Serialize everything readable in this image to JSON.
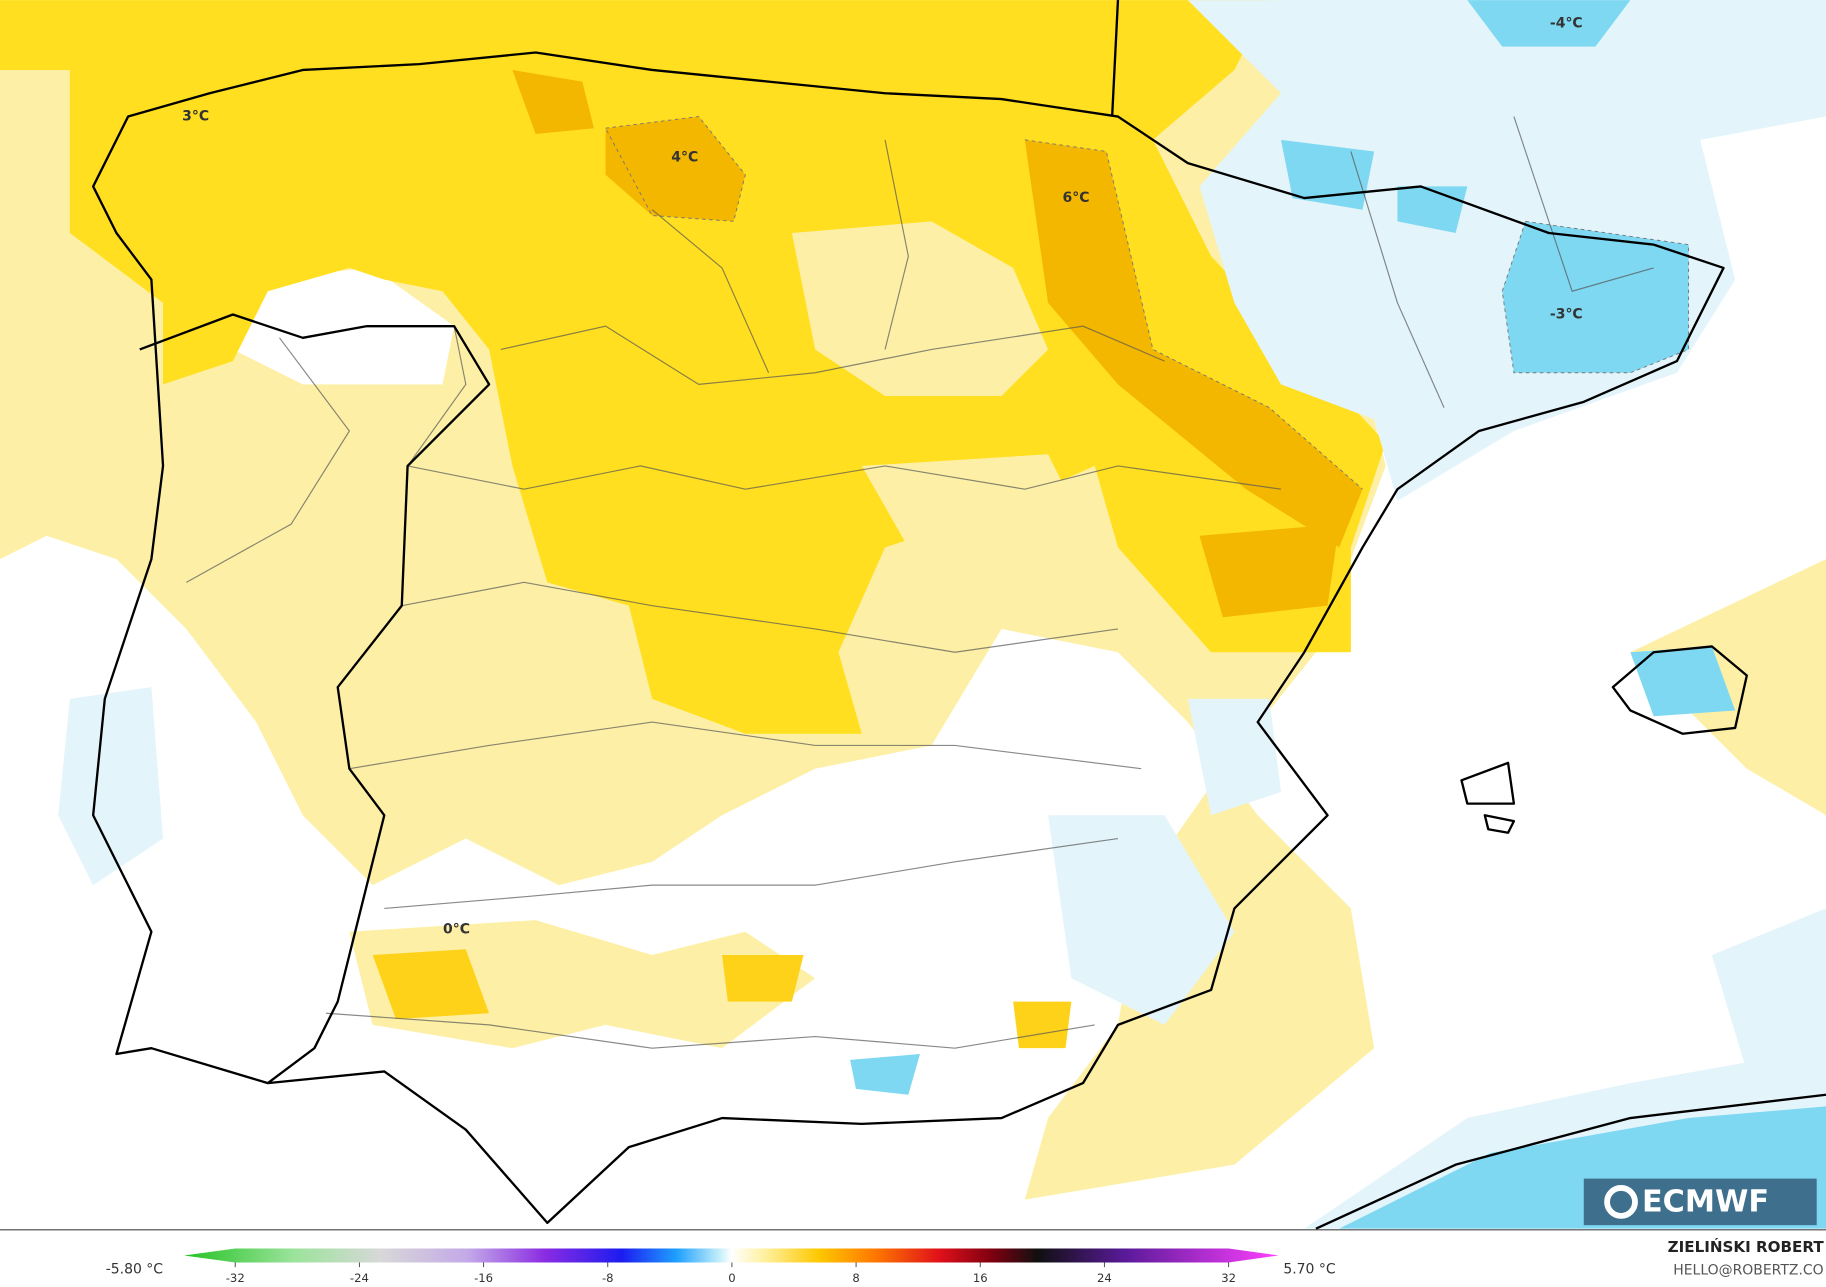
{
  "map": {
    "labels": [
      "3°C",
      "4°C",
      "6°C",
      "-4°C",
      "-3°C",
      "0°C"
    ]
  },
  "colorbar": {
    "min_label": "-5.80 °C",
    "max_label": "5.70 °C",
    "ticks": [
      -32,
      -24,
      -16,
      -8,
      0,
      8,
      16,
      24,
      32
    ]
  },
  "credit": {
    "author": "ZIELIŃSKI ROBERT",
    "email": "HELLO@ROBERTZ.CO"
  },
  "logo": "ECMWF"
}
